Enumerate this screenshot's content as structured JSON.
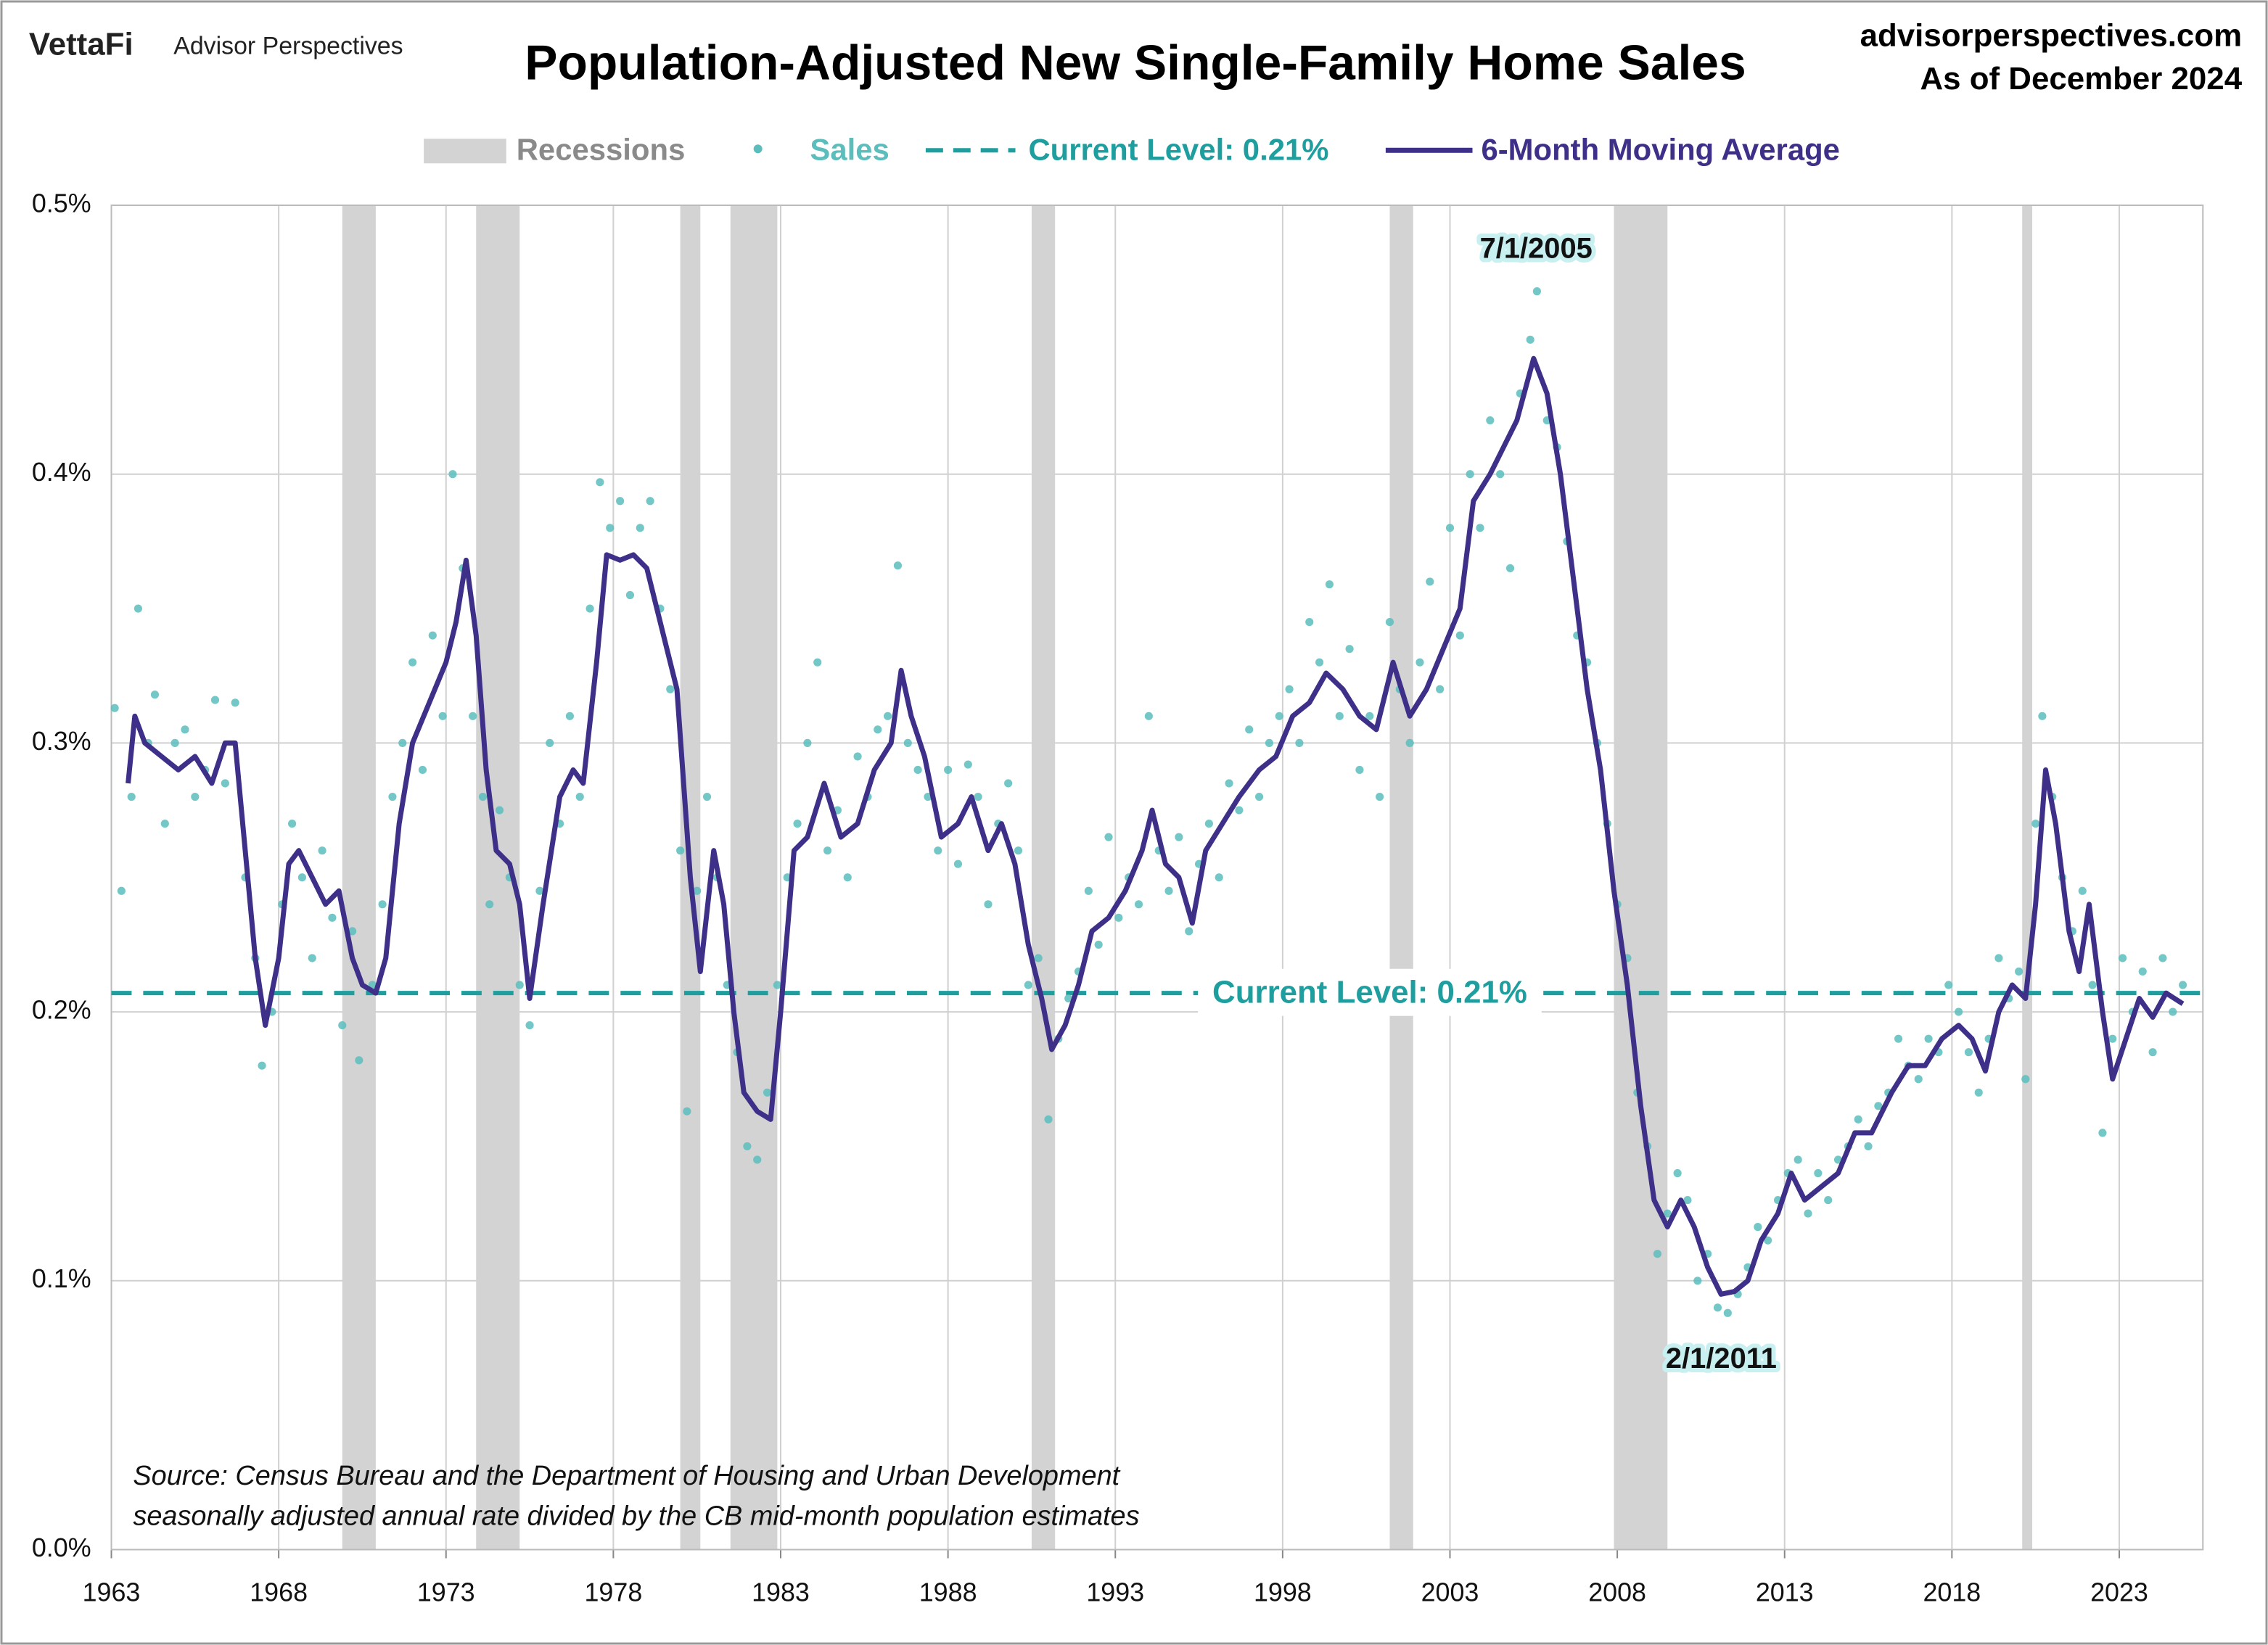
{
  "chart_data": {
    "type": "line",
    "title": "Population-Adjusted New Single-Family Home Sales",
    "brand": "VettaFi",
    "publisher": "Advisor Perspectives",
    "website": "advisorperspectives.com",
    "as_of": "As of December 2024",
    "source": [
      "Source: Census Bureau and the Department of Housing and Urban Development",
      "seasonally adjusted annual rate divided by the CB mid-month population estimates"
    ],
    "annotations": [
      "7/1/2005",
      "2/1/2011"
    ],
    "xlim": [
      1963,
      2025.5
    ],
    "xticks": [
      1963,
      1968,
      1973,
      1978,
      1983,
      1988,
      1993,
      1998,
      2003,
      2008,
      2013,
      2018,
      2023
    ],
    "ylim": [
      0,
      0.5
    ],
    "yticks": [
      {
        "value": 0,
        "label": "0.0%"
      },
      {
        "value": 0.1,
        "label": "0.1%"
      },
      {
        "value": 0.2,
        "label": "0.2%"
      },
      {
        "value": 0.3,
        "label": "0.3%"
      },
      {
        "value": 0.4,
        "label": "0.4%"
      },
      {
        "value": 0.5,
        "label": "0.5%"
      }
    ],
    "grid": true,
    "recessions": {
      "name": "Recessions",
      "color": "#d3d3d3",
      "periods": [
        [
          1969.9,
          1970.9
        ],
        [
          1973.9,
          1975.2
        ],
        [
          1980.0,
          1980.6
        ],
        [
          1981.5,
          1982.9
        ],
        [
          1990.5,
          1991.2
        ],
        [
          2001.2,
          2001.9
        ],
        [
          2007.9,
          2009.5
        ],
        [
          2020.1,
          2020.4
        ]
      ]
    },
    "current_level": {
      "value": 0.207,
      "label": "Current Level: 0.21%",
      "color": "#1e9e9e"
    },
    "series": [
      {
        "name": "Sales",
        "style": "markers",
        "color": "#5cbdbd",
        "x": [
          1963.1,
          1963.3,
          1963.6,
          1963.8,
          1964.1,
          1964.3,
          1964.6,
          1964.9,
          1965.2,
          1965.5,
          1965.8,
          1966.1,
          1966.4,
          1966.7,
          1967,
          1967.3,
          1967.5,
          1967.8,
          1968.1,
          1968.4,
          1968.7,
          1969,
          1969.3,
          1969.6,
          1969.9,
          1970.2,
          1970.4,
          1970.8,
          1971.1,
          1971.4,
          1971.7,
          1972,
          1972.3,
          1972.6,
          1972.9,
          1973.2,
          1973.5,
          1973.8,
          1974.1,
          1974.3,
          1974.6,
          1974.9,
          1975.2,
          1975.5,
          1975.8,
          1976.1,
          1976.4,
          1976.7,
          1977,
          1977.3,
          1977.6,
          1977.9,
          1978.2,
          1978.5,
          1978.8,
          1979.1,
          1979.4,
          1979.7,
          1980,
          1980.2,
          1980.5,
          1980.8,
          1981.1,
          1981.4,
          1981.7,
          1982,
          1982.3,
          1982.6,
          1982.9,
          1983.2,
          1983.5,
          1983.8,
          1984.1,
          1984.4,
          1984.7,
          1985,
          1985.3,
          1985.6,
          1985.9,
          1986.2,
          1986.5,
          1986.8,
          1987.1,
          1987.4,
          1987.7,
          1988,
          1988.3,
          1988.6,
          1988.9,
          1989.2,
          1989.5,
          1989.8,
          1990.1,
          1990.4,
          1990.7,
          1991,
          1991.3,
          1991.6,
          1991.9,
          1992.2,
          1992.5,
          1992.8,
          1993.1,
          1993.4,
          1993.7,
          1994,
          1994.3,
          1994.6,
          1994.9,
          1995.2,
          1995.5,
          1995.8,
          1996.1,
          1996.4,
          1996.7,
          1997,
          1997.3,
          1997.6,
          1997.9,
          1998.2,
          1998.5,
          1998.8,
          1999.1,
          1999.4,
          1999.7,
          2000,
          2000.3,
          2000.6,
          2000.9,
          2001.2,
          2001.5,
          2001.8,
          2002.1,
          2002.4,
          2002.7,
          2003,
          2003.3,
          2003.6,
          2003.9,
          2004.2,
          2004.5,
          2004.8,
          2005.1,
          2005.4,
          2005.6,
          2005.9,
          2006.2,
          2006.5,
          2006.8,
          2007.1,
          2007.4,
          2007.7,
          2008,
          2008.3,
          2008.6,
          2008.9,
          2009.2,
          2009.5,
          2009.8,
          2010.1,
          2010.4,
          2010.7,
          2011,
          2011.3,
          2011.6,
          2011.9,
          2012.2,
          2012.5,
          2012.8,
          2013.1,
          2013.4,
          2013.7,
          2014,
          2014.3,
          2014.6,
          2014.9,
          2015.2,
          2015.5,
          2015.8,
          2016.1,
          2016.4,
          2016.7,
          2017,
          2017.3,
          2017.6,
          2017.9,
          2018.2,
          2018.5,
          2018.8,
          2019.1,
          2019.4,
          2019.7,
          2020,
          2020.2,
          2020.5,
          2020.7,
          2021,
          2021.3,
          2021.6,
          2021.9,
          2022.2,
          2022.5,
          2022.8,
          2023.1,
          2023.4,
          2023.7,
          2024,
          2024.3,
          2024.6,
          2024.9
        ],
        "values": [
          0.313,
          0.245,
          0.28,
          0.35,
          0.3,
          0.318,
          0.27,
          0.3,
          0.305,
          0.28,
          0.29,
          0.316,
          0.285,
          0.315,
          0.25,
          0.22,
          0.18,
          0.2,
          0.24,
          0.27,
          0.25,
          0.22,
          0.26,
          0.235,
          0.195,
          0.23,
          0.182,
          0.21,
          0.24,
          0.28,
          0.3,
          0.33,
          0.29,
          0.34,
          0.31,
          0.4,
          0.365,
          0.31,
          0.28,
          0.24,
          0.275,
          0.25,
          0.21,
          0.195,
          0.245,
          0.3,
          0.27,
          0.31,
          0.28,
          0.35,
          0.397,
          0.38,
          0.39,
          0.355,
          0.38,
          0.39,
          0.35,
          0.32,
          0.26,
          0.163,
          0.245,
          0.28,
          0.25,
          0.21,
          0.185,
          0.15,
          0.145,
          0.17,
          0.21,
          0.25,
          0.27,
          0.3,
          0.33,
          0.26,
          0.275,
          0.25,
          0.295,
          0.28,
          0.305,
          0.31,
          0.366,
          0.3,
          0.29,
          0.28,
          0.26,
          0.29,
          0.255,
          0.292,
          0.28,
          0.24,
          0.27,
          0.285,
          0.26,
          0.21,
          0.22,
          0.16,
          0.19,
          0.205,
          0.215,
          0.245,
          0.225,
          0.265,
          0.235,
          0.25,
          0.24,
          0.31,
          0.26,
          0.245,
          0.265,
          0.23,
          0.255,
          0.27,
          0.25,
          0.285,
          0.275,
          0.305,
          0.28,
          0.3,
          0.31,
          0.32,
          0.3,
          0.345,
          0.33,
          0.359,
          0.31,
          0.335,
          0.29,
          0.31,
          0.28,
          0.345,
          0.32,
          0.3,
          0.33,
          0.36,
          0.32,
          0.38,
          0.34,
          0.4,
          0.38,
          0.42,
          0.4,
          0.365,
          0.43,
          0.45,
          0.468,
          0.42,
          0.41,
          0.375,
          0.34,
          0.33,
          0.3,
          0.27,
          0.24,
          0.22,
          0.17,
          0.15,
          0.11,
          0.125,
          0.14,
          0.13,
          0.1,
          0.11,
          0.09,
          0.088,
          0.095,
          0.105,
          0.12,
          0.115,
          0.13,
          0.14,
          0.145,
          0.125,
          0.14,
          0.13,
          0.145,
          0.15,
          0.16,
          0.15,
          0.165,
          0.17,
          0.19,
          0.18,
          0.175,
          0.19,
          0.185,
          0.21,
          0.2,
          0.185,
          0.17,
          0.19,
          0.22,
          0.205,
          0.215,
          0.175,
          0.27,
          0.31,
          0.28,
          0.25,
          0.23,
          0.245,
          0.21,
          0.155,
          0.19,
          0.22,
          0.2,
          0.215,
          0.185,
          0.22,
          0.2,
          0.21
        ]
      },
      {
        "name": "6-Month Moving Average",
        "style": "line",
        "color": "#3e2f88",
        "x": [
          1963.5,
          1963.7,
          1964,
          1964.5,
          1965,
          1965.5,
          1966,
          1966.4,
          1966.7,
          1967,
          1967.3,
          1967.6,
          1968,
          1968.3,
          1968.6,
          1969,
          1969.4,
          1969.8,
          1970.2,
          1970.5,
          1970.9,
          1971.2,
          1971.6,
          1972,
          1972.5,
          1973,
          1973.3,
          1973.6,
          1973.9,
          1974.2,
          1974.5,
          1974.9,
          1975.2,
          1975.5,
          1975.9,
          1976.4,
          1976.8,
          1977.1,
          1977.5,
          1977.8,
          1978.2,
          1978.6,
          1979,
          1979.5,
          1979.9,
          1980.3,
          1980.6,
          1981,
          1981.3,
          1981.6,
          1981.9,
          1982.3,
          1982.7,
          1983,
          1983.4,
          1983.8,
          1984.3,
          1984.8,
          1985.3,
          1985.8,
          1986.3,
          1986.6,
          1986.9,
          1987.3,
          1987.8,
          1988.3,
          1988.7,
          1989.2,
          1989.6,
          1990,
          1990.4,
          1990.8,
          1991.1,
          1991.5,
          1991.9,
          1992.3,
          1992.8,
          1993.3,
          1993.8,
          1994.1,
          1994.5,
          1994.9,
          1995.3,
          1995.7,
          1996.2,
          1996.7,
          1997.3,
          1997.8,
          1998.3,
          1998.8,
          1999.3,
          1999.8,
          2000.3,
          2000.8,
          2001.3,
          2001.8,
          2002.3,
          2002.8,
          2003.3,
          2003.7,
          2004.2,
          2004.6,
          2005,
          2005.5,
          2005.9,
          2006.3,
          2006.7,
          2007.1,
          2007.5,
          2007.9,
          2008.3,
          2008.7,
          2009.1,
          2009.5,
          2009.9,
          2010.3,
          2010.7,
          2011.1,
          2011.5,
          2011.9,
          2012.3,
          2012.8,
          2013.2,
          2013.6,
          2014.1,
          2014.6,
          2015.1,
          2015.6,
          2016.2,
          2016.7,
          2017.2,
          2017.7,
          2018.2,
          2018.6,
          2019,
          2019.4,
          2019.8,
          2020.2,
          2020.5,
          2020.8,
          2021.1,
          2021.5,
          2021.8,
          2022.1,
          2022.5,
          2022.8,
          2023.2,
          2023.6,
          2024,
          2024.4,
          2024.9
        ],
        "values": [
          0.285,
          0.31,
          0.3,
          0.295,
          0.29,
          0.295,
          0.285,
          0.3,
          0.3,
          0.26,
          0.22,
          0.195,
          0.22,
          0.255,
          0.26,
          0.25,
          0.24,
          0.245,
          0.22,
          0.21,
          0.207,
          0.22,
          0.27,
          0.3,
          0.315,
          0.33,
          0.345,
          0.368,
          0.34,
          0.29,
          0.26,
          0.255,
          0.24,
          0.205,
          0.24,
          0.28,
          0.29,
          0.285,
          0.33,
          0.37,
          0.368,
          0.37,
          0.365,
          0.34,
          0.32,
          0.25,
          0.215,
          0.26,
          0.24,
          0.2,
          0.17,
          0.163,
          0.16,
          0.2,
          0.26,
          0.265,
          0.285,
          0.265,
          0.27,
          0.29,
          0.3,
          0.327,
          0.31,
          0.295,
          0.265,
          0.27,
          0.28,
          0.26,
          0.27,
          0.255,
          0.225,
          0.205,
          0.186,
          0.195,
          0.21,
          0.23,
          0.235,
          0.245,
          0.26,
          0.275,
          0.255,
          0.25,
          0.233,
          0.26,
          0.27,
          0.28,
          0.29,
          0.295,
          0.31,
          0.315,
          0.326,
          0.32,
          0.31,
          0.305,
          0.33,
          0.31,
          0.32,
          0.335,
          0.35,
          0.39,
          0.4,
          0.41,
          0.42,
          0.443,
          0.43,
          0.4,
          0.36,
          0.32,
          0.29,
          0.245,
          0.21,
          0.165,
          0.13,
          0.12,
          0.13,
          0.12,
          0.105,
          0.095,
          0.096,
          0.1,
          0.115,
          0.125,
          0.14,
          0.13,
          0.135,
          0.14,
          0.155,
          0.155,
          0.17,
          0.18,
          0.18,
          0.19,
          0.195,
          0.19,
          0.178,
          0.2,
          0.21,
          0.205,
          0.24,
          0.29,
          0.27,
          0.23,
          0.215,
          0.24,
          0.2,
          0.175,
          0.19,
          0.205,
          0.198,
          0.207,
          0.203
        ]
      }
    ]
  }
}
